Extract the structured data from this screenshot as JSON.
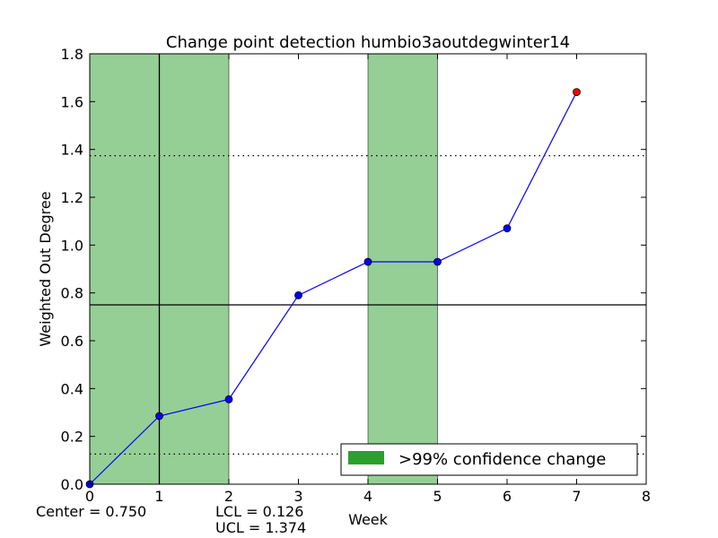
{
  "chart_data": {
    "type": "line",
    "title": "Change point detection humbio3aoutdegwinter14",
    "xlabel": "Week",
    "ylabel": "Weighted Out Degree",
    "xlim": [
      0,
      8
    ],
    "ylim": [
      0,
      1.8
    ],
    "x_ticks": [
      "0",
      "1",
      "2",
      "3",
      "4",
      "5",
      "6",
      "7",
      "8"
    ],
    "y_ticks": [
      "0.0",
      "0.2",
      "0.4",
      "0.6",
      "0.8",
      "1.0",
      "1.2",
      "1.4",
      "1.6",
      "1.8"
    ],
    "x": [
      0,
      1,
      2,
      3,
      4,
      5,
      6,
      7
    ],
    "values": [
      0.0,
      0.285,
      0.355,
      0.79,
      0.93,
      0.93,
      1.07,
      1.64
    ],
    "series_color": "#0000ff",
    "highlight_point_color": "#ff0000",
    "highlight_point_index": 7,
    "center": 0.75,
    "lcl": 0.126,
    "ucl": 1.374,
    "change_regions": [
      [
        0,
        2
      ],
      [
        4,
        5
      ]
    ],
    "change_region_color": "#2ca02c",
    "vertical_line_x": 1,
    "legend": {
      "label": ">99% confidence change",
      "location": "lower-right"
    },
    "footer": {
      "center_text": "Center = 0.750",
      "lcl_text": "LCL = 0.126",
      "ucl_text": "UCL = 1.374"
    }
  }
}
